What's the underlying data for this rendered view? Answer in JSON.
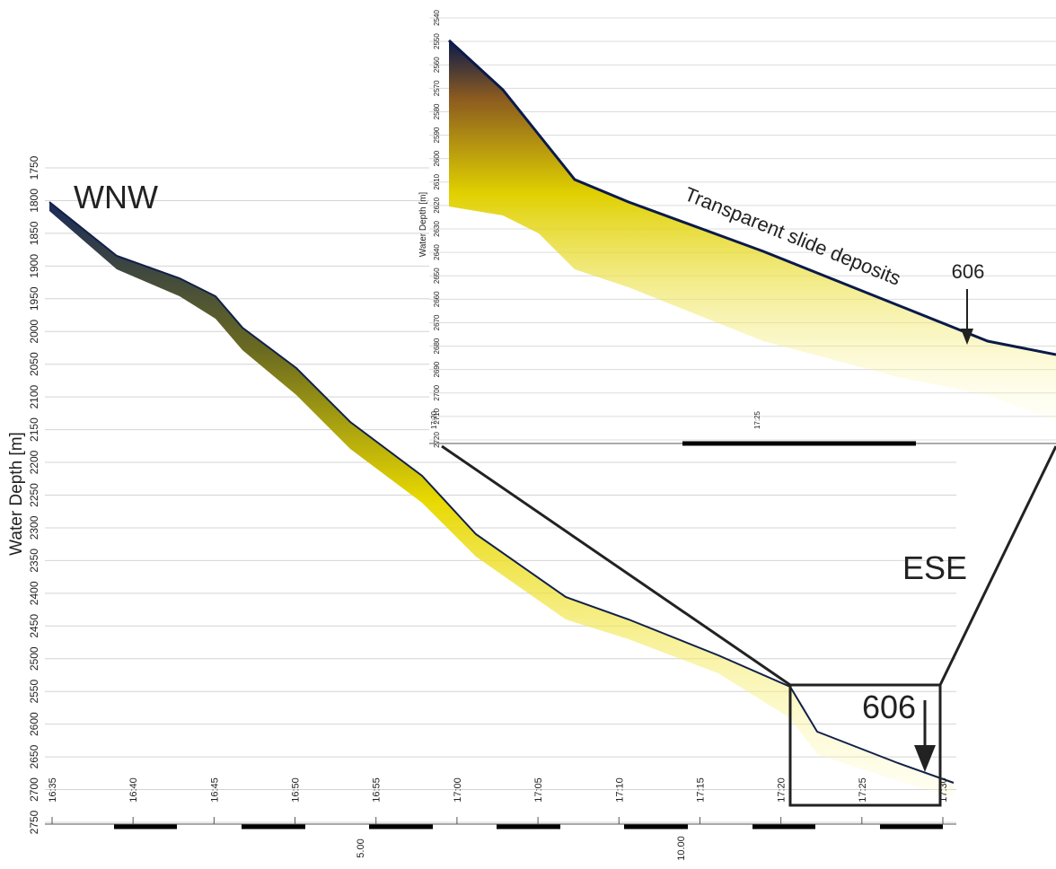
{
  "main": {
    "ylabel": "Water Depth [m]",
    "ylim": [
      1750,
      2750
    ],
    "yticks": [
      1750,
      1800,
      1850,
      1900,
      1950,
      2000,
      2050,
      2100,
      2150,
      2200,
      2250,
      2300,
      2350,
      2400,
      2450,
      2500,
      2550,
      2600,
      2650,
      2700,
      2750
    ],
    "time_labels": [
      "16:35",
      "16:40",
      "16:45",
      "16:50",
      "16:55",
      "17:00",
      "17:05",
      "17:10",
      "17:15",
      "17:20",
      "17:25",
      "17:30"
    ],
    "scale_labels": [
      "5.00",
      "10.00"
    ],
    "annotations": {
      "start": "WNW",
      "end": "ESE",
      "site": "606"
    }
  },
  "inset": {
    "ylabel": "Water Depth [m]",
    "ylim": [
      2540,
      2720
    ],
    "yticks": [
      2540,
      2550,
      2560,
      2570,
      2580,
      2590,
      2600,
      2610,
      2620,
      2630,
      2640,
      2650,
      2660,
      2670,
      2680,
      2690,
      2700,
      2710,
      2720
    ],
    "time_labels": [
      "17:20",
      "17:25"
    ],
    "annotations": {
      "deposits": "Transparent slide deposits",
      "site": "606"
    }
  }
}
